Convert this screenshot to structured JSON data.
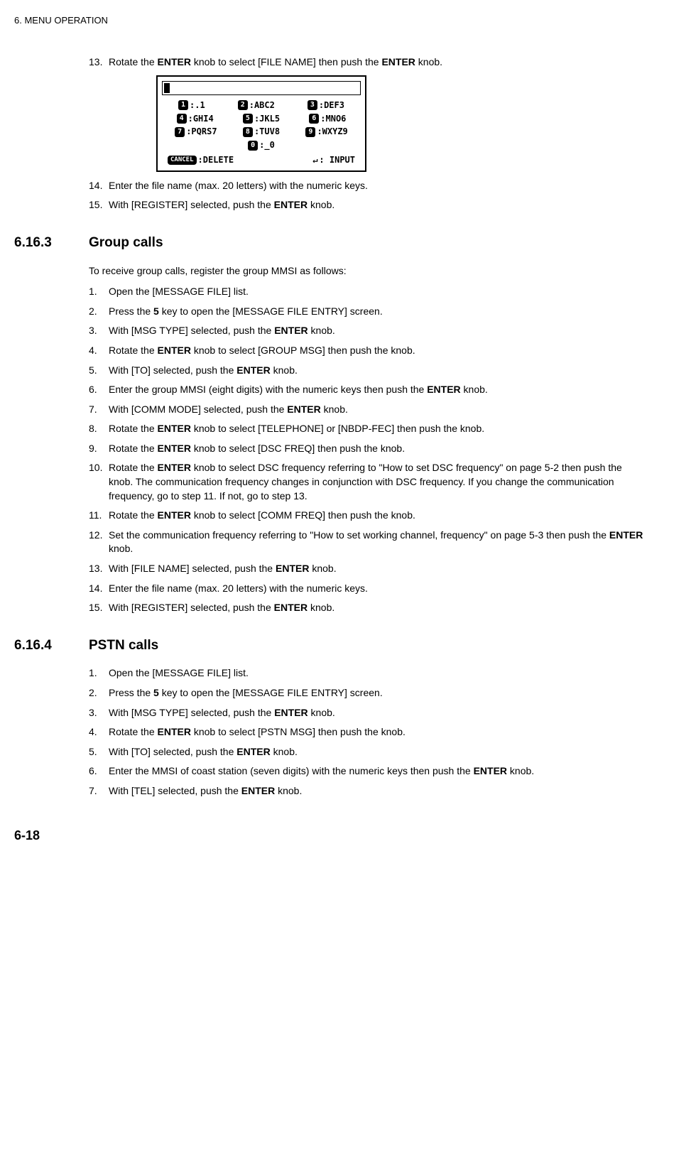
{
  "header": "6.  MENU OPERATION",
  "pageNumber": "6-18",
  "section1": {
    "step13": {
      "num": "13.",
      "text_parts": [
        "Rotate the ",
        "ENTER",
        " knob to select [FILE NAME] then push the ",
        "ENTER",
        " knob."
      ]
    },
    "step14": {
      "num": "14.",
      "text": "Enter the file name (max. 20 letters) with the numeric keys."
    },
    "step15": {
      "num": "15.",
      "text_parts": [
        "With [REGISTER] selected, push the ",
        "ENTER",
        " knob."
      ]
    }
  },
  "keypad": {
    "k1": ":.1",
    "k2": ":ABC2",
    "k3": ":DEF3",
    "k4": ":GHI4",
    "k5": ":JKL5",
    "k6": ":MNO6",
    "k7": ":PQRS7",
    "k8": ":TUV8",
    "k9": ":WXYZ9",
    "k0": ":_0",
    "cancel": "CANCEL",
    "delete": ":DELETE",
    "input": ": INPUT"
  },
  "section_6_16_3": {
    "number": "6.16.3",
    "title": "Group calls",
    "intro": "To receive group calls, register the group MMSI as follows:",
    "steps": {
      "s1": {
        "num": "1.",
        "text": "Open the [MESSAGE FILE] list."
      },
      "s2": {
        "num": "2.",
        "text_parts": [
          "Press the ",
          "5",
          " key to open the [MESSAGE FILE ENTRY] screen."
        ]
      },
      "s3": {
        "num": "3.",
        "text_parts": [
          "With [MSG TYPE] selected, push the ",
          "ENTER",
          " knob."
        ]
      },
      "s4": {
        "num": "4.",
        "text_parts": [
          "Rotate the ",
          "ENTER",
          " knob to select [GROUP MSG] then push the knob."
        ]
      },
      "s5": {
        "num": "5.",
        "text_parts": [
          "With [TO] selected, push the ",
          "ENTER",
          " knob."
        ]
      },
      "s6": {
        "num": "6.",
        "text_parts": [
          "Enter the group MMSI (eight digits) with the numeric keys then push the ",
          "ENTER",
          " knob."
        ]
      },
      "s7": {
        "num": "7.",
        "text_parts": [
          "With [COMM MODE] selected, push the ",
          "ENTER",
          " knob."
        ]
      },
      "s8": {
        "num": "8.",
        "text_parts": [
          "Rotate the ",
          "ENTER",
          " knob to select [TELEPHONE] or [NBDP-FEC] then push the knob."
        ]
      },
      "s9": {
        "num": "9.",
        "text_parts": [
          "Rotate the ",
          "ENTER",
          " knob to select [DSC FREQ] then push the knob."
        ]
      },
      "s10": {
        "num": "10.",
        "text_parts": [
          "Rotate the ",
          "ENTER",
          " knob to select DSC frequency referring to \"How to set DSC frequency\" on page 5-2 then push the knob. The communication frequency changes in conjunction with DSC frequency. If you change the communication frequency, go to step 11. If not, go to step 13."
        ]
      },
      "s11": {
        "num": "11.",
        "text_parts": [
          "Rotate the ",
          "ENTER",
          " knob to select  [COMM FREQ] then push the knob."
        ]
      },
      "s12": {
        "num": "12.",
        "text_parts": [
          "Set the communication frequency referring to \"How to set working channel, frequency\" on page 5-3 then push the ",
          "ENTER",
          " knob."
        ]
      },
      "s13": {
        "num": "13.",
        "text_parts": [
          "With [FILE NAME] selected, push the ",
          "ENTER",
          " knob."
        ]
      },
      "s14": {
        "num": "14.",
        "text": "Enter the file name (max. 20 letters) with the numeric keys."
      },
      "s15": {
        "num": "15.",
        "text_parts": [
          "With [REGISTER] selected, push the ",
          "ENTER",
          " knob."
        ]
      }
    }
  },
  "section_6_16_4": {
    "number": "6.16.4",
    "title": "PSTN calls",
    "steps": {
      "s1": {
        "num": "1.",
        "text": "Open the [MESSAGE FILE] list."
      },
      "s2": {
        "num": "2.",
        "text_parts": [
          "Press the ",
          "5",
          " key to open the [MESSAGE FILE ENTRY] screen."
        ]
      },
      "s3": {
        "num": "3.",
        "text_parts": [
          "With [MSG TYPE] selected, push the ",
          "ENTER",
          " knob."
        ]
      },
      "s4": {
        "num": "4.",
        "text_parts": [
          "Rotate the ",
          "ENTER",
          " knob to select [PSTN MSG] then push the knob."
        ]
      },
      "s5": {
        "num": "5.",
        "text_parts": [
          "With [TO] selected, push the ",
          "ENTER",
          " knob."
        ]
      },
      "s6": {
        "num": "6.",
        "text_parts": [
          "Enter the MMSI of coast station (seven digits) with the numeric keys then push the ",
          "ENTER",
          " knob."
        ]
      },
      "s7": {
        "num": "7.",
        "text_parts": [
          "With [TEL] selected, push the ",
          "ENTER",
          " knob."
        ]
      }
    }
  }
}
